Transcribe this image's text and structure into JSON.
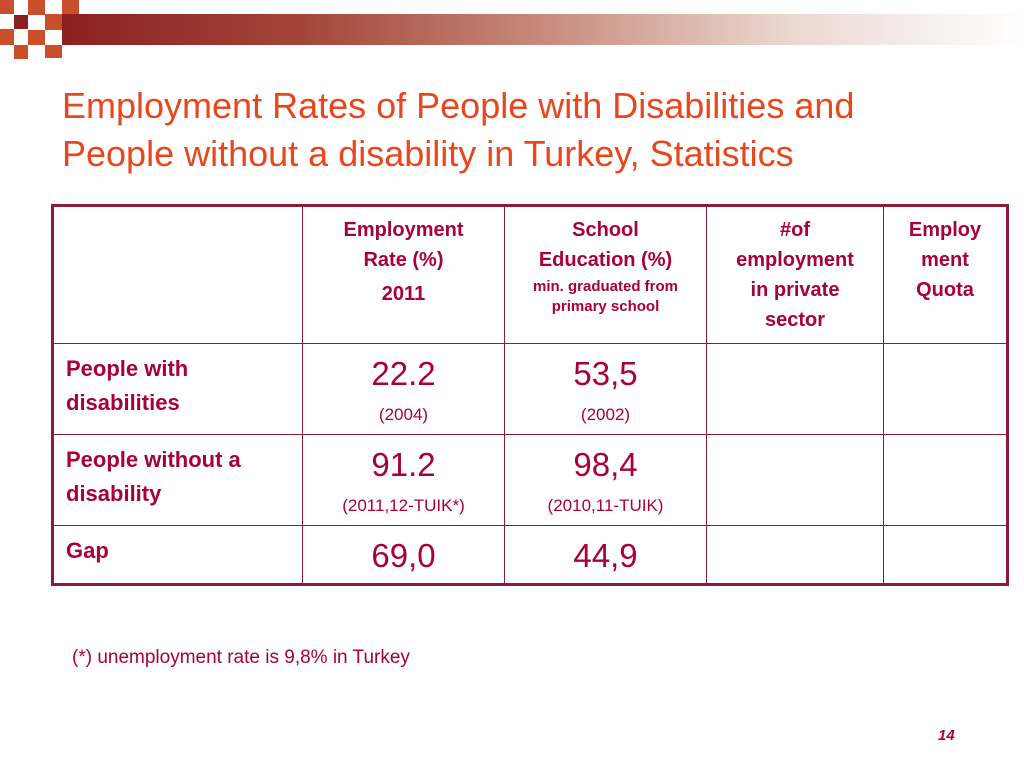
{
  "slide": {
    "title_lines": [
      "Employment Rates of People with Disabilities and",
      "People without a disability in Turkey, Statistics"
    ],
    "footnote": "(*) unemployment rate is 9,8% in Turkey",
    "page_number": "14",
    "colors": {
      "title": "#e8461c",
      "text": "#a8003a",
      "border": "#8a1c3a",
      "header_bar": "#8b2020"
    }
  },
  "table": {
    "headers": {
      "employment_rate": {
        "line1": "Employment",
        "line2": "Rate (%)",
        "year": "2011"
      },
      "school_education": {
        "line1": "School",
        "line2": "Education (%)",
        "sub1": "min. graduated from",
        "sub2": "primary school"
      },
      "private_sector": {
        "line1": "#of",
        "line2": "employment",
        "line3": "in private",
        "line4": "sector"
      },
      "quota": {
        "line1": "Employ",
        "line2": "ment",
        "line3": "Quota"
      }
    },
    "rows": [
      {
        "label_line1": "People with",
        "label_line2": "disabilities",
        "employment_rate": "22.2",
        "employment_note": "(2004)",
        "school_education": "53,5",
        "school_note": "(2002)",
        "private_sector": "",
        "quota": ""
      },
      {
        "label_line1": "People without a",
        "label_line2": "disability",
        "employment_rate": "91.2",
        "employment_note": "(2011,12-TUIK*)",
        "school_education": "98,4",
        "school_note": "(2010,11-TUIK)",
        "private_sector": "",
        "quota": ""
      },
      {
        "label_line1": "Gap",
        "label_line2": "",
        "employment_rate": "69,0",
        "employment_note": "",
        "school_education": "44,9",
        "school_note": "",
        "private_sector": "",
        "quota": ""
      }
    ]
  }
}
